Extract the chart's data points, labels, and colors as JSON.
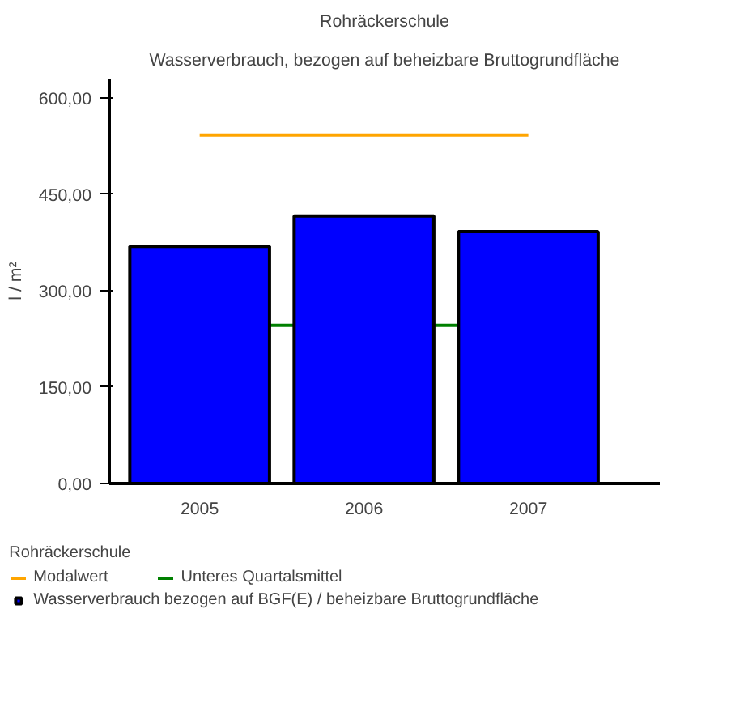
{
  "chart_data": {
    "type": "bar",
    "title": "Rohräckerschule",
    "subtitle": "Wasserverbrauch, bezogen auf beheizbare Bruttogrundfläche",
    "ylabel": "l / m²",
    "legend_title": "Rohräckerschule",
    "categories": [
      "2005",
      "2006",
      "2007"
    ],
    "series": [
      {
        "name": "Modalwert",
        "type": "line",
        "color": "#ffa500",
        "values": [
          542,
          542,
          542
        ]
      },
      {
        "name": "Wasserverbrauch bezogen auf BGF(E) / beheizbare Bruttogrundfläche",
        "color": "#0000ff",
        "values": [
          369,
          416,
          392
        ]
      }
    ],
    "ref_lines": [
      {
        "axis": "y",
        "value": 246,
        "label": "Unteres Quartalsmittel",
        "color": "#008000"
      }
    ],
    "ylim": [
      0,
      630
    ],
    "yticks": [
      {
        "value": 0,
        "label": "0,00"
      },
      {
        "value": 150,
        "label": "150,00"
      },
      {
        "value": 300,
        "label": "300,00"
      },
      {
        "value": 450,
        "label": "450,00"
      },
      {
        "value": 600,
        "label": "600,00"
      }
    ],
    "grid": false,
    "legend": "bottom"
  }
}
